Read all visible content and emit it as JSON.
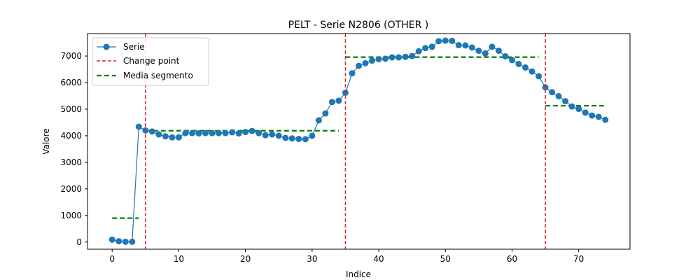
{
  "chart_data": {
    "type": "line",
    "title": "PELT - Serie N2806 (OTHER       )",
    "xlabel": "Indice",
    "ylabel": "Valore",
    "xlim": [
      -3.7,
      77.7
    ],
    "ylim": [
      -270,
      7845
    ],
    "xticks": [
      0,
      10,
      20,
      30,
      40,
      50,
      60,
      70
    ],
    "yticks": [
      0,
      1000,
      2000,
      3000,
      4000,
      5000,
      6000,
      7000
    ],
    "grid": false,
    "legend_position": "top-left",
    "legend": {
      "series_label": "Serie",
      "change_point_label": "Change point",
      "segment_mean_label": "Media segmento"
    },
    "colors": {
      "series": "#1f77b4",
      "change_point": "#d62728",
      "segment_mean": "#008000"
    },
    "series": [
      {
        "name": "Serie",
        "x": [
          0,
          1,
          2,
          3,
          4,
          5,
          6,
          7,
          8,
          9,
          10,
          11,
          12,
          13,
          14,
          15,
          16,
          17,
          18,
          19,
          20,
          21,
          22,
          23,
          24,
          25,
          26,
          27,
          28,
          29,
          30,
          31,
          32,
          33,
          34,
          35,
          36,
          37,
          38,
          39,
          40,
          41,
          42,
          43,
          44,
          45,
          46,
          47,
          48,
          49,
          50,
          51,
          52,
          53,
          54,
          55,
          56,
          57,
          58,
          59,
          60,
          61,
          62,
          63,
          64,
          65,
          66,
          67,
          68,
          69,
          70,
          71,
          72,
          73,
          74
        ],
        "values": [
          90,
          30,
          10,
          10,
          4340,
          4200,
          4160,
          4050,
          3980,
          3940,
          3940,
          4100,
          4100,
          4090,
          4100,
          4100,
          4100,
          4100,
          4130,
          4090,
          4140,
          4180,
          4100,
          4020,
          4050,
          4000,
          3920,
          3900,
          3880,
          3870,
          4000,
          4580,
          4840,
          5270,
          5320,
          5620,
          6350,
          6630,
          6730,
          6830,
          6880,
          6900,
          6950,
          6950,
          6970,
          7000,
          7180,
          7300,
          7350,
          7560,
          7580,
          7570,
          7410,
          7400,
          7320,
          7200,
          7100,
          7350,
          7200,
          6990,
          6850,
          6700,
          6570,
          6420,
          6240,
          5820,
          5640,
          5490,
          5300,
          5100,
          5010,
          4870,
          4760,
          4710,
          4600
        ]
      }
    ],
    "change_points": [
      5,
      35,
      65
    ],
    "segment_means": [
      {
        "x_start": 0,
        "x_end": 4,
        "value": 900
      },
      {
        "x_start": 5,
        "x_end": 34,
        "value": 4190
      },
      {
        "x_start": 35,
        "x_end": 64,
        "value": 6960
      },
      {
        "x_start": 65,
        "x_end": 74,
        "value": 5130
      }
    ]
  }
}
